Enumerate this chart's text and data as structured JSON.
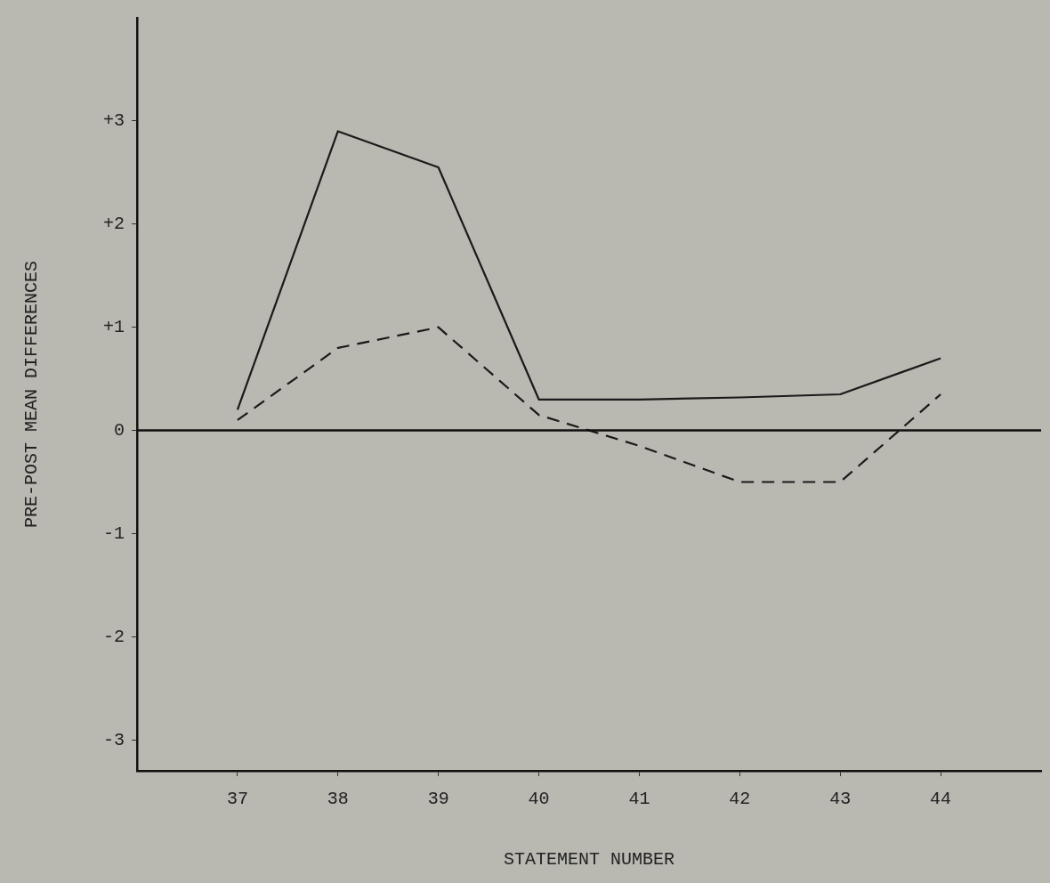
{
  "chart_data": {
    "type": "line",
    "xlabel": "STATEMENT NUMBER",
    "ylabel": "PRE-POST MEAN DIFFERENCES",
    "x": [
      37,
      38,
      39,
      40,
      41,
      42,
      43,
      44
    ],
    "series": [
      {
        "color": "#1a1a1a",
        "line_style": "solid",
        "values": [
          0.2,
          2.9,
          2.55,
          0.3,
          0.3,
          0.32,
          0.35,
          0.7
        ]
      },
      {
        "color": "#1a1a1a",
        "line_style": "dashed",
        "values": [
          0.1,
          0.8,
          1.0,
          0.15,
          -0.15,
          -0.5,
          -0.5,
          0.35
        ]
      }
    ],
    "xlim": [
      36,
      45
    ],
    "xticks": [
      37,
      38,
      39,
      40,
      41,
      42,
      43,
      44
    ],
    "ylim": [
      -3.3,
      4
    ],
    "yticks": [
      -3,
      -2,
      -1,
      {
        "value": 0,
        "label": "0"
      },
      {
        "value": 1,
        "label": "+1"
      },
      {
        "value": 2,
        "label": "+2"
      },
      {
        "value": 3,
        "label": "+3"
      }
    ],
    "ref_lines": [
      {
        "axis": "y",
        "value": 0,
        "color": "#111111"
      }
    ],
    "grid": false,
    "legend": false,
    "marker": "none"
  }
}
